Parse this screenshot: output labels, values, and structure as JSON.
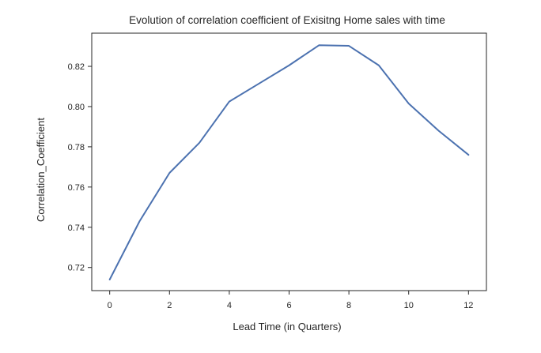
{
  "chart_data": {
    "type": "line",
    "title": "Evolution of correlation coefficient of Exisitng Home sales with time",
    "xlabel": "Lead Time (in Quarters)",
    "ylabel": "Correlation_Coefficient",
    "xlim": [
      -0.6,
      12.6
    ],
    "ylim": [
      0.7085,
      0.8365
    ],
    "x_ticks": [
      0,
      2,
      4,
      6,
      8,
      10,
      12
    ],
    "x_tick_labels": [
      "0",
      "2",
      "4",
      "6",
      "8",
      "10",
      "12"
    ],
    "y_ticks": [
      0.72,
      0.74,
      0.76,
      0.78,
      0.8,
      0.82
    ],
    "y_tick_labels": [
      "0.72",
      "0.74",
      "0.76",
      "0.78",
      "0.80",
      "0.82"
    ],
    "grid": false,
    "line_color": "#4c72b0",
    "series": [
      {
        "x": [
          0,
          1,
          2,
          3,
          4,
          5,
          6,
          7,
          8,
          9,
          10,
          11,
          12
        ],
        "values": [
          0.714,
          0.743,
          0.767,
          0.782,
          0.8025,
          0.8115,
          0.8205,
          0.8305,
          0.8302,
          0.8205,
          0.8015,
          0.788,
          0.776
        ]
      }
    ]
  }
}
